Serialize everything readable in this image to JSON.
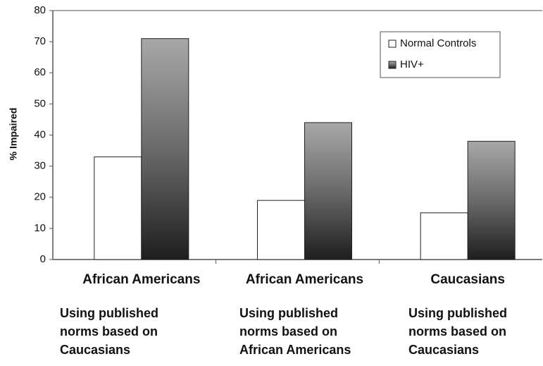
{
  "chart_data": {
    "type": "bar",
    "ylabel": "% Impaired",
    "categories": [
      "African Americans",
      "African Americans",
      "Caucasians"
    ],
    "notes": [
      [
        "Using published",
        "norms based on",
        "Caucasians"
      ],
      [
        "Using published",
        "norms based on",
        "African Americans"
      ],
      [
        "Using published",
        "norms based on",
        "Caucasians"
      ]
    ],
    "series": [
      {
        "name": "Normal Controls",
        "color": "#ffffff",
        "values": [
          33,
          19,
          15
        ]
      },
      {
        "name": "HIV+",
        "color": "#6a6a6a",
        "values": [
          71,
          44,
          38
        ]
      }
    ],
    "ylim": [
      0,
      80
    ],
    "yticks": [
      0,
      10,
      20,
      30,
      40,
      50,
      60,
      70,
      80
    ],
    "legend": "upper right"
  }
}
